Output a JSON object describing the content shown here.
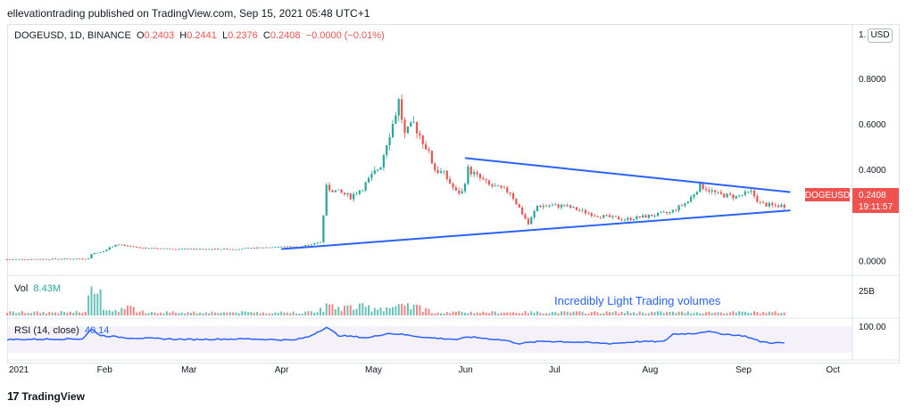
{
  "header": {
    "text": "ellevationtrading published on TradingView.com, Sep 15, 2021 05:48 UTC+1"
  },
  "legend": {
    "symbol": "DOGEUSD, 1D, BINANCE",
    "o_label": "O",
    "o_value": "0.2403",
    "h_label": "H",
    "h_value": "0.2441",
    "l_label": "L",
    "l_value": "0.2376",
    "c_label": "C",
    "c_value": "0.2408",
    "change": "−0.0000 (−0.01%)"
  },
  "price_axis": {
    "truncated_label": "1.",
    "currency_button": "USD"
  },
  "price_tag": {
    "symbol": "DOGEUSD",
    "price": "0.2408",
    "countdown": "19:11:57"
  },
  "volume": {
    "label": "Vol",
    "value": "8.43M",
    "axis_label": "25B"
  },
  "rsi": {
    "label": "RSI (14, close)",
    "value": "40.14",
    "axis_label": "100.00"
  },
  "annotation": "Incredibly Light Trading volumes",
  "footer": {
    "brand": "TradingView",
    "logo": "17"
  },
  "colors": {
    "up": "#26a69a",
    "down": "#ef5350",
    "trendline": "#2962ff",
    "rsi": "#2962ff",
    "tag": "#ef5350"
  },
  "chart_data": {
    "type": "candlestick",
    "y_ticks": [
      "0.8000",
      "0.6000",
      "0.4000",
      "0.0000"
    ],
    "ylim": [
      -0.03,
      0.96
    ],
    "x_ticks": [
      {
        "label": "2021",
        "day": 0
      },
      {
        "label": "Feb",
        "day": 31
      },
      {
        "label": "Mar",
        "day": 59
      },
      {
        "label": "Apr",
        "day": 90
      },
      {
        "label": "May",
        "day": 120
      },
      {
        "label": "Jun",
        "day": 151
      },
      {
        "label": "Jul",
        "day": 181
      },
      {
        "label": "Aug",
        "day": 212
      },
      {
        "label": "Sep",
        "day": 243
      },
      {
        "label": "Oct",
        "day": 273
      }
    ],
    "xlim": [
      0,
      280
    ],
    "close_keypoints": [
      [
        0,
        0.005
      ],
      [
        27,
        0.008
      ],
      [
        28,
        0.03
      ],
      [
        31,
        0.035
      ],
      [
        36,
        0.07
      ],
      [
        45,
        0.055
      ],
      [
        60,
        0.05
      ],
      [
        75,
        0.05
      ],
      [
        90,
        0.06
      ],
      [
        97,
        0.06
      ],
      [
        104,
        0.08
      ],
      [
        106,
        0.32
      ],
      [
        110,
        0.3
      ],
      [
        114,
        0.28
      ],
      [
        118,
        0.32
      ],
      [
        124,
        0.42
      ],
      [
        126,
        0.52
      ],
      [
        128,
        0.6
      ],
      [
        130,
        0.7
      ],
      [
        132,
        0.55
      ],
      [
        135,
        0.6
      ],
      [
        139,
        0.5
      ],
      [
        142,
        0.4
      ],
      [
        145,
        0.38
      ],
      [
        149,
        0.3
      ],
      [
        151,
        0.3
      ],
      [
        153,
        0.4
      ],
      [
        156,
        0.37
      ],
      [
        160,
        0.33
      ],
      [
        167,
        0.3
      ],
      [
        173,
        0.16
      ],
      [
        176,
        0.24
      ],
      [
        185,
        0.24
      ],
      [
        195,
        0.2
      ],
      [
        205,
        0.18
      ],
      [
        215,
        0.2
      ],
      [
        220,
        0.21
      ],
      [
        226,
        0.26
      ],
      [
        230,
        0.33
      ],
      [
        236,
        0.29
      ],
      [
        242,
        0.28
      ],
      [
        247,
        0.3
      ],
      [
        250,
        0.25
      ],
      [
        254,
        0.24
      ],
      [
        258,
        0.2408
      ]
    ],
    "trendlines": [
      {
        "name": "upper",
        "from": [
          152,
          0.45
        ],
        "to": [
          260,
          0.3
        ]
      },
      {
        "name": "lower",
        "from": [
          91,
          0.05
        ],
        "to": [
          260,
          0.22
        ]
      }
    ],
    "rsi_keypoints": [
      [
        0,
        50
      ],
      [
        25,
        52
      ],
      [
        28,
        80
      ],
      [
        31,
        62
      ],
      [
        40,
        55
      ],
      [
        60,
        50
      ],
      [
        80,
        52
      ],
      [
        95,
        48
      ],
      [
        100,
        58
      ],
      [
        106,
        86
      ],
      [
        110,
        62
      ],
      [
        120,
        55
      ],
      [
        126,
        68
      ],
      [
        130,
        66
      ],
      [
        140,
        55
      ],
      [
        150,
        50
      ],
      [
        153,
        58
      ],
      [
        165,
        48
      ],
      [
        170,
        38
      ],
      [
        178,
        45
      ],
      [
        190,
        42
      ],
      [
        200,
        38
      ],
      [
        210,
        44
      ],
      [
        218,
        44
      ],
      [
        221,
        66
      ],
      [
        228,
        68
      ],
      [
        232,
        74
      ],
      [
        238,
        66
      ],
      [
        245,
        60
      ],
      [
        250,
        44
      ],
      [
        254,
        40
      ],
      [
        258,
        40.14
      ]
    ]
  }
}
